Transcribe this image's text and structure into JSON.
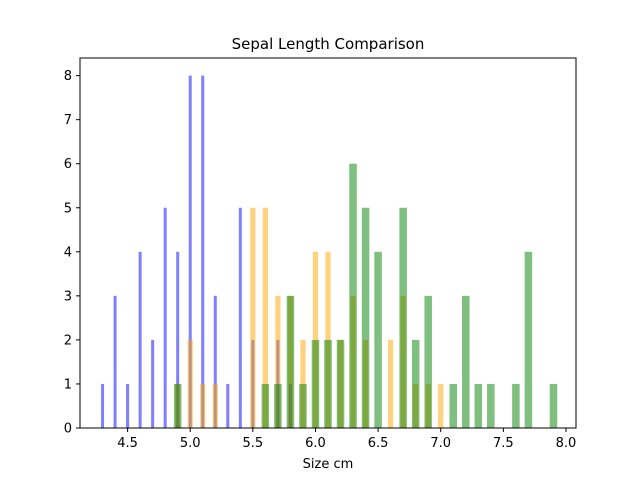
{
  "chart_data": {
    "type": "histogram",
    "title": "Sepal Length Comparison",
    "xlabel": "Size cm",
    "ylabel": "",
    "xlim": [
      4.12,
      8.08
    ],
    "ylim": [
      0,
      8.4
    ],
    "xticks": [
      4.5,
      5.0,
      5.5,
      6.0,
      6.5,
      7.0,
      7.5,
      8.0
    ],
    "xtick_labels": [
      "4.5",
      "5.0",
      "5.5",
      "6.0",
      "6.5",
      "7.0",
      "7.5",
      "8.0"
    ],
    "yticks": [
      0,
      1,
      2,
      3,
      4,
      5,
      6,
      7,
      8
    ],
    "ytick_labels": [
      "0",
      "1",
      "2",
      "3",
      "4",
      "5",
      "6",
      "7",
      "8"
    ],
    "grid": false,
    "legend": "none",
    "alpha": 0.5,
    "series": [
      {
        "color": "#0000ff",
        "bin_width": 0.024,
        "bars": [
          {
            "x": 4.3,
            "count": 1
          },
          {
            "x": 4.4,
            "count": 3
          },
          {
            "x": 4.5,
            "count": 1
          },
          {
            "x": 4.6,
            "count": 4
          },
          {
            "x": 4.7,
            "count": 2
          },
          {
            "x": 4.8,
            "count": 5
          },
          {
            "x": 4.9,
            "count": 4
          },
          {
            "x": 5.0,
            "count": 8
          },
          {
            "x": 5.1,
            "count": 8
          },
          {
            "x": 5.2,
            "count": 3
          },
          {
            "x": 5.3,
            "count": 1
          },
          {
            "x": 5.4,
            "count": 5
          },
          {
            "x": 5.5,
            "count": 2
          },
          {
            "x": 5.7,
            "count": 2
          },
          {
            "x": 5.8,
            "count": 1
          }
        ]
      },
      {
        "color": "#ffa500",
        "bin_width": 0.042,
        "bars": [
          {
            "x": 4.9,
            "count": 1
          },
          {
            "x": 5.0,
            "count": 2
          },
          {
            "x": 5.1,
            "count": 1
          },
          {
            "x": 5.2,
            "count": 1
          },
          {
            "x": 5.5,
            "count": 5
          },
          {
            "x": 5.6,
            "count": 5
          },
          {
            "x": 5.7,
            "count": 3
          },
          {
            "x": 5.8,
            "count": 3
          },
          {
            "x": 5.9,
            "count": 2
          },
          {
            "x": 6.0,
            "count": 4
          },
          {
            "x": 6.1,
            "count": 4
          },
          {
            "x": 6.2,
            "count": 2
          },
          {
            "x": 6.3,
            "count": 3
          },
          {
            "x": 6.4,
            "count": 2
          },
          {
            "x": 6.6,
            "count": 2
          },
          {
            "x": 6.7,
            "count": 3
          },
          {
            "x": 6.8,
            "count": 1
          },
          {
            "x": 6.9,
            "count": 1
          },
          {
            "x": 7.0,
            "count": 1
          }
        ]
      },
      {
        "color": "#008000",
        "bin_width": 0.06,
        "bars": [
          {
            "x": 4.9,
            "count": 1
          },
          {
            "x": 5.6,
            "count": 1
          },
          {
            "x": 5.7,
            "count": 1
          },
          {
            "x": 5.8,
            "count": 3
          },
          {
            "x": 5.9,
            "count": 1
          },
          {
            "x": 6.0,
            "count": 2
          },
          {
            "x": 6.1,
            "count": 2
          },
          {
            "x": 6.2,
            "count": 2
          },
          {
            "x": 6.3,
            "count": 6
          },
          {
            "x": 6.4,
            "count": 5
          },
          {
            "x": 6.5,
            "count": 4
          },
          {
            "x": 6.7,
            "count": 5
          },
          {
            "x": 6.8,
            "count": 2
          },
          {
            "x": 6.9,
            "count": 3
          },
          {
            "x": 7.1,
            "count": 1
          },
          {
            "x": 7.2,
            "count": 3
          },
          {
            "x": 7.3,
            "count": 1
          },
          {
            "x": 7.4,
            "count": 1
          },
          {
            "x": 7.6,
            "count": 1
          },
          {
            "x": 7.7,
            "count": 4
          },
          {
            "x": 7.9,
            "count": 1
          }
        ]
      }
    ]
  }
}
